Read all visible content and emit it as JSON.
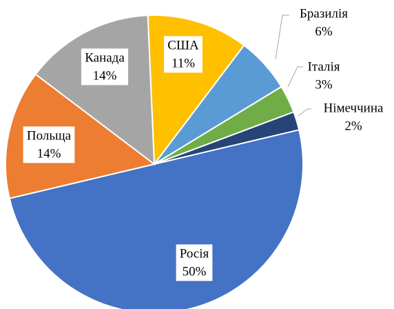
{
  "chart_data": {
    "type": "pie",
    "categories": [
      "США",
      "Бразилія",
      "Італія",
      "Німеччина",
      "Росія",
      "Польща",
      "Канада"
    ],
    "values": [
      11,
      6,
      3,
      2,
      50,
      14,
      14
    ],
    "value_labels": [
      "11%",
      "6%",
      "3%",
      "2%",
      "50%",
      "14%",
      "14%"
    ],
    "colors": [
      "#ffc000",
      "#5b9bd5",
      "#70ad47",
      "#264478",
      "#4472c4",
      "#ed7d31",
      "#a5a5a5"
    ]
  }
}
